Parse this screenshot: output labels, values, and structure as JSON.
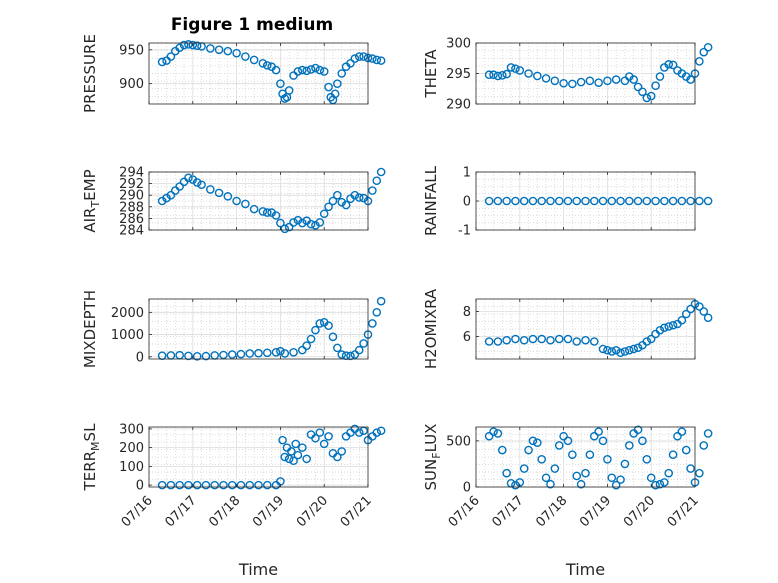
{
  "title": "Figure 1 medium",
  "xlabel": "Time",
  "marker_color": "#0072BD",
  "chart_data": [
    {
      "type": "scatter",
      "ylabel": "PRESSURE",
      "ylim": [
        870,
        960
      ],
      "yticks": [
        900,
        950
      ],
      "x": [
        0.3,
        0.4,
        0.5,
        0.6,
        0.7,
        0.8,
        0.9,
        1.0,
        1.1,
        1.2,
        1.4,
        1.6,
        1.8,
        2.0,
        2.2,
        2.4,
        2.6,
        2.7,
        2.8,
        2.9,
        3.0,
        3.05,
        3.1,
        3.15,
        3.2,
        3.3,
        3.4,
        3.5,
        3.6,
        3.7,
        3.8,
        3.9,
        4.0,
        4.1,
        4.15,
        4.2,
        4.25,
        4.3,
        4.4,
        4.5,
        4.6,
        4.7,
        4.8,
        4.9,
        5.0,
        5.1,
        5.2,
        5.3
      ],
      "y": [
        932,
        934,
        940,
        948,
        953,
        957,
        958,
        957,
        956,
        955,
        952,
        950,
        948,
        945,
        940,
        935,
        930,
        927,
        925,
        920,
        900,
        885,
        878,
        880,
        890,
        912,
        918,
        920,
        919,
        921,
        923,
        920,
        918,
        895,
        880,
        876,
        885,
        900,
        915,
        925,
        930,
        937,
        940,
        940,
        938,
        937,
        935,
        934
      ]
    },
    {
      "type": "scatter",
      "ylabel": "THETA",
      "ylim": [
        290,
        300
      ],
      "yticks": [
        290,
        295,
        300
      ],
      "x": [
        0.3,
        0.4,
        0.5,
        0.6,
        0.7,
        0.8,
        0.9,
        1.0,
        1.2,
        1.4,
        1.6,
        1.8,
        2.0,
        2.2,
        2.4,
        2.6,
        2.8,
        3.0,
        3.2,
        3.4,
        3.5,
        3.6,
        3.7,
        3.8,
        3.9,
        4.0,
        4.1,
        4.2,
        4.3,
        4.4,
        4.5,
        4.6,
        4.7,
        4.8,
        4.9,
        5.0,
        5.1,
        5.2,
        5.3
      ],
      "y": [
        294.8,
        294.8,
        294.6,
        294.7,
        294.9,
        296,
        295.8,
        295.5,
        295,
        294.6,
        294.2,
        293.8,
        293.4,
        293.3,
        293.6,
        293.8,
        293.5,
        293.8,
        294,
        293.8,
        294.5,
        294,
        292.8,
        292,
        291,
        291.3,
        293,
        294.5,
        296,
        296.5,
        296.4,
        295.5,
        295,
        294.5,
        294,
        295,
        297,
        298.5,
        299.3
      ]
    },
    {
      "type": "scatter",
      "ylabel": "AIR_TEMP",
      "ylim": [
        284,
        294
      ],
      "yticks": [
        284,
        286,
        288,
        290,
        292,
        294
      ],
      "x": [
        0.3,
        0.4,
        0.5,
        0.6,
        0.7,
        0.8,
        0.9,
        1.0,
        1.1,
        1.2,
        1.4,
        1.6,
        1.8,
        2.0,
        2.2,
        2.4,
        2.6,
        2.7,
        2.8,
        2.9,
        3.0,
        3.1,
        3.2,
        3.3,
        3.4,
        3.5,
        3.6,
        3.7,
        3.8,
        3.9,
        4.0,
        4.1,
        4.2,
        4.3,
        4.4,
        4.5,
        4.6,
        4.7,
        4.8,
        4.9,
        5.0,
        5.1,
        5.2,
        5.3
      ],
      "y": [
        289,
        289.5,
        290,
        290.8,
        291.5,
        292.3,
        293,
        292.7,
        292.2,
        291.8,
        291,
        290.4,
        289.8,
        289,
        288.5,
        287.6,
        287.2,
        287,
        287,
        286.5,
        285.2,
        284.2,
        284.5,
        285.3,
        285.7,
        285.2,
        285.6,
        285,
        284.8,
        285.3,
        286.8,
        288,
        289,
        290,
        288.8,
        288.3,
        289.4,
        290,
        289.6,
        289.5,
        289,
        290.8,
        292.5,
        294
      ]
    },
    {
      "type": "scatter",
      "ylabel": "RAINFALL",
      "ylim": [
        -1,
        1
      ],
      "yticks": [
        -1,
        0,
        1
      ],
      "x": [
        0.3,
        0.5,
        0.7,
        0.9,
        1.1,
        1.3,
        1.5,
        1.7,
        1.9,
        2.1,
        2.3,
        2.5,
        2.7,
        2.9,
        3.1,
        3.3,
        3.5,
        3.7,
        3.9,
        4.1,
        4.3,
        4.5,
        4.7,
        4.9,
        5.1,
        5.3
      ],
      "y": [
        0,
        0,
        0,
        0,
        0,
        0,
        0,
        0,
        0,
        0,
        0,
        0,
        0,
        0,
        0,
        0,
        0,
        0,
        0,
        0,
        0,
        0,
        0,
        0,
        0,
        0
      ]
    },
    {
      "type": "scatter",
      "ylabel": "MIXDEPTH",
      "ylim": [
        -100,
        2600
      ],
      "yticks": [
        0,
        1000,
        2000
      ],
      "x": [
        0.3,
        0.5,
        0.7,
        0.9,
        1.1,
        1.3,
        1.5,
        1.7,
        1.9,
        2.1,
        2.3,
        2.5,
        2.7,
        2.9,
        3.0,
        3.1,
        3.3,
        3.5,
        3.6,
        3.7,
        3.8,
        3.9,
        4.0,
        4.1,
        4.2,
        4.3,
        4.4,
        4.5,
        4.6,
        4.7,
        4.8,
        4.9,
        5.0,
        5.1,
        5.2,
        5.3
      ],
      "y": [
        50,
        60,
        70,
        40,
        20,
        30,
        60,
        80,
        100,
        120,
        150,
        160,
        180,
        200,
        250,
        150,
        200,
        300,
        500,
        800,
        1200,
        1500,
        1550,
        1400,
        900,
        400,
        100,
        50,
        40,
        100,
        300,
        600,
        1000,
        1500,
        2000,
        2500
      ]
    },
    {
      "type": "scatter",
      "ylabel": "H2OMIXRA",
      "ylim": [
        4.2,
        9
      ],
      "yticks": [
        6,
        8
      ],
      "x": [
        0.3,
        0.5,
        0.7,
        0.9,
        1.1,
        1.3,
        1.5,
        1.7,
        1.9,
        2.1,
        2.3,
        2.5,
        2.7,
        2.9,
        3.0,
        3.1,
        3.2,
        3.3,
        3.4,
        3.5,
        3.6,
        3.7,
        3.8,
        3.9,
        4.0,
        4.1,
        4.2,
        4.3,
        4.4,
        4.5,
        4.6,
        4.7,
        4.8,
        4.9,
        5.0,
        5.1,
        5.2,
        5.3
      ],
      "y": [
        5.6,
        5.6,
        5.7,
        5.8,
        5.7,
        5.8,
        5.8,
        5.7,
        5.8,
        5.8,
        5.6,
        5.7,
        5.6,
        5,
        4.9,
        4.8,
        4.9,
        4.7,
        4.8,
        4.9,
        5,
        5.1,
        5.3,
        5.6,
        5.8,
        6.2,
        6.5,
        6.7,
        6.8,
        6.9,
        7,
        7.3,
        7.8,
        8.2,
        8.6,
        8.4,
        8,
        7.5
      ]
    },
    {
      "type": "scatter",
      "ylabel": "TERR_MSL",
      "ylim": [
        -10,
        310
      ],
      "yticks": [
        0,
        100,
        200,
        300
      ],
      "x": [
        0.3,
        0.5,
        0.7,
        0.9,
        1.1,
        1.3,
        1.5,
        1.7,
        1.9,
        2.1,
        2.3,
        2.5,
        2.7,
        2.9,
        3.0,
        3.05,
        3.1,
        3.15,
        3.2,
        3.25,
        3.3,
        3.35,
        3.4,
        3.5,
        3.6,
        3.7,
        3.8,
        3.9,
        4.0,
        4.1,
        4.2,
        4.3,
        4.4,
        4.5,
        4.6,
        4.7,
        4.8,
        4.9,
        5.0,
        5.1,
        5.2,
        5.3
      ],
      "y": [
        0,
        0,
        0,
        0,
        0,
        0,
        0,
        0,
        0,
        0,
        0,
        0,
        0,
        0,
        20,
        240,
        150,
        200,
        140,
        180,
        130,
        220,
        160,
        200,
        140,
        270,
        250,
        280,
        220,
        260,
        170,
        150,
        180,
        260,
        280,
        300,
        280,
        290,
        240,
        260,
        280,
        290
      ]
    },
    {
      "type": "scatter",
      "ylabel": "SUN_FLUX",
      "ylim": [
        0,
        650
      ],
      "yticks": [
        0,
        500
      ],
      "x": [
        0.3,
        0.4,
        0.5,
        0.6,
        0.7,
        0.8,
        0.9,
        1.0,
        1.1,
        1.2,
        1.3,
        1.4,
        1.5,
        1.6,
        1.7,
        1.8,
        1.9,
        2.0,
        2.1,
        2.2,
        2.3,
        2.4,
        2.5,
        2.6,
        2.7,
        2.8,
        2.9,
        3.0,
        3.1,
        3.2,
        3.3,
        3.4,
        3.5,
        3.6,
        3.7,
        3.8,
        3.9,
        4.0,
        4.1,
        4.2,
        4.3,
        4.4,
        4.5,
        4.6,
        4.7,
        4.8,
        4.9,
        5.0,
        5.1,
        5.2,
        5.3
      ],
      "y": [
        550,
        600,
        580,
        400,
        150,
        40,
        20,
        50,
        200,
        400,
        500,
        480,
        300,
        100,
        30,
        200,
        450,
        550,
        500,
        350,
        120,
        30,
        150,
        350,
        550,
        600,
        500,
        300,
        100,
        20,
        80,
        250,
        450,
        580,
        620,
        500,
        300,
        100,
        20,
        30,
        50,
        150,
        350,
        550,
        600,
        400,
        200,
        50,
        150,
        450,
        580
      ]
    }
  ],
  "xlim_labels": [
    "07/16",
    "07/17",
    "07/18",
    "07/19",
    "07/20",
    "07/21"
  ]
}
